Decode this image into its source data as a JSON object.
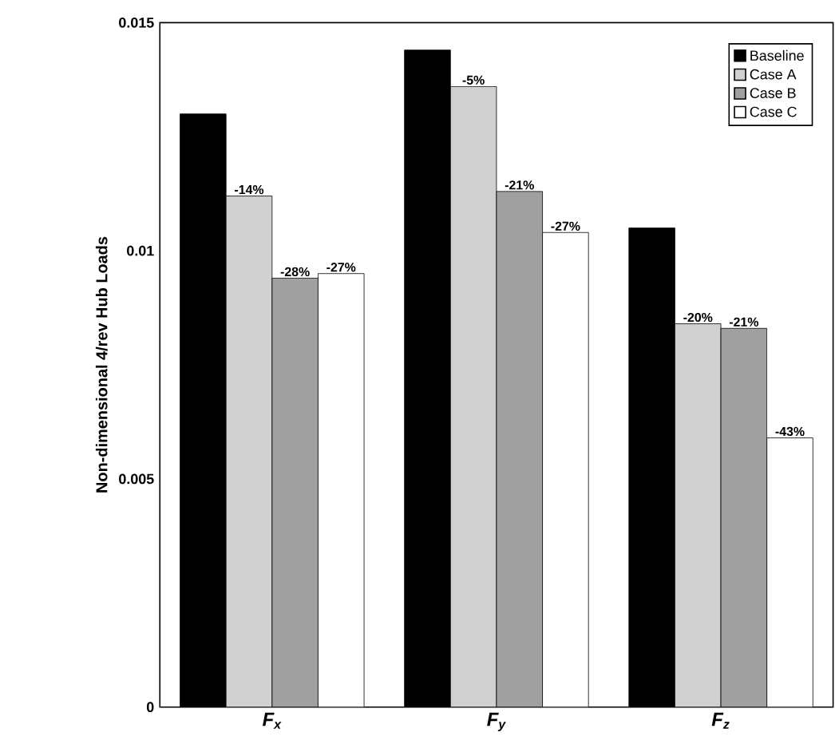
{
  "chart_data": {
    "type": "bar",
    "ylabel": "Non-dimensional 4/rev Hub Loads",
    "categories": [
      "F$_{x}$",
      "F$_{y}$",
      "F$_{z}$"
    ],
    "series": [
      {
        "name": "Baseline",
        "color": "#000000",
        "values": [
          0.013,
          0.0144,
          0.0105
        ]
      },
      {
        "name": "Case A",
        "color": "#d0d0d0",
        "values": [
          0.0112,
          0.0136,
          0.0084
        ]
      },
      {
        "name": "Case B",
        "color": "#a0a0a0",
        "values": [
          0.0094,
          0.0113,
          0.0083
        ]
      },
      {
        "name": "Case C",
        "color": "#ffffff",
        "values": [
          0.0095,
          0.0104,
          0.0059
        ]
      }
    ],
    "annotations": [
      "-14%",
      "-28%",
      "-27%",
      "-5%",
      "-21%",
      "-27%",
      "-20%",
      "-21%",
      "-43%"
    ],
    "ylim": [
      0,
      0.015
    ],
    "yticks": [
      0,
      0.005,
      0.01,
      0.015
    ],
    "legend": "top right",
    "grid": false
  }
}
